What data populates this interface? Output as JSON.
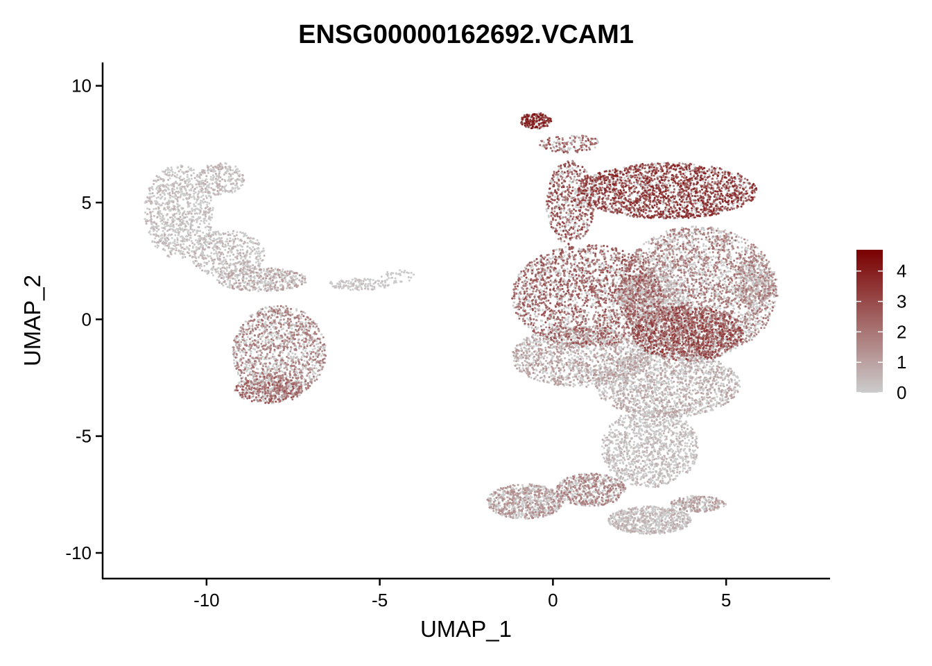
{
  "chart_data": {
    "type": "scatter",
    "title": "ENSG00000162692.VCAM1",
    "xlabel": "UMAP_1",
    "ylabel": "UMAP_2",
    "xlim": [
      -13,
      8
    ],
    "ylim": [
      -11.1,
      11
    ],
    "x_ticks": [
      -10,
      -5,
      0,
      5
    ],
    "y_ticks": [
      10,
      5,
      0,
      -5,
      -10
    ],
    "x_tick_labels": [
      "-10",
      "-5",
      "0",
      "5"
    ],
    "y_tick_labels": [
      "10",
      "5",
      "0",
      "-5",
      "-10"
    ],
    "grid": false,
    "legend": {
      "placement": "right",
      "type": "colorbar",
      "range": [
        0,
        4.7
      ],
      "ticks": [
        0,
        1,
        2,
        3,
        4
      ],
      "tick_labels": [
        "0",
        "1",
        "2",
        "3",
        "4"
      ],
      "color_low": "#cccccc",
      "color_high": "#7a0000"
    },
    "clusters": [
      {
        "name": "",
        "cx": -10.8,
        "cy": 4.6,
        "rx": 1.0,
        "ry": 2.0,
        "n": 900,
        "expr": 0.5
      },
      {
        "name": "",
        "cx": -9.4,
        "cy": 2.8,
        "rx": 1.1,
        "ry": 1.0,
        "n": 500,
        "expr": 0.6
      },
      {
        "name": "",
        "cx": -9.6,
        "cy": 6.0,
        "rx": 0.7,
        "ry": 0.7,
        "n": 250,
        "expr": 0.6
      },
      {
        "name": "",
        "cx": -8.4,
        "cy": 1.7,
        "rx": 1.3,
        "ry": 0.5,
        "n": 450,
        "expr": 1.0
      },
      {
        "name": "",
        "cx": -7.9,
        "cy": -1.4,
        "rx": 1.35,
        "ry": 2.0,
        "n": 1500,
        "expr": 1.7
      },
      {
        "name": "",
        "cx": -8.2,
        "cy": -3.0,
        "rx": 1.0,
        "ry": 0.6,
        "n": 400,
        "expr": 2.3
      },
      {
        "name": "",
        "cx": -5.6,
        "cy": 1.5,
        "rx": 0.9,
        "ry": 0.25,
        "n": 130,
        "expr": 0.4
      },
      {
        "name": "",
        "cx": -4.5,
        "cy": 1.85,
        "rx": 0.5,
        "ry": 0.3,
        "n": 40,
        "expr": 0.2
      },
      {
        "name": "",
        "cx": -0.5,
        "cy": 8.5,
        "rx": 0.45,
        "ry": 0.35,
        "n": 200,
        "expr": 3.5
      },
      {
        "name": "",
        "cx": 0.5,
        "cy": 7.5,
        "rx": 0.9,
        "ry": 0.4,
        "n": 150,
        "expr": 2.5
      },
      {
        "name": "",
        "cx": 0.5,
        "cy": 5.0,
        "rx": 0.7,
        "ry": 1.8,
        "n": 600,
        "expr": 2.7
      },
      {
        "name": "",
        "cx": 3.3,
        "cy": 5.5,
        "rx": 2.6,
        "ry": 1.2,
        "n": 2200,
        "expr": 3.1
      },
      {
        "name": "",
        "cx": 1.0,
        "cy": 1.0,
        "rx": 2.2,
        "ry": 2.2,
        "n": 2400,
        "expr": 2.4
      },
      {
        "name": "",
        "cx": 4.2,
        "cy": 1.2,
        "rx": 2.3,
        "ry": 2.8,
        "n": 3200,
        "expr": 1.8
      },
      {
        "name": "",
        "cx": 2.8,
        "cy": 1.0,
        "rx": 1.0,
        "ry": 1.0,
        "n": 500,
        "expr": 0.5
      },
      {
        "name": "",
        "cx": 3.9,
        "cy": -0.6,
        "rx": 1.6,
        "ry": 1.2,
        "n": 1400,
        "expr": 2.8
      },
      {
        "name": "",
        "cx": 0.8,
        "cy": -1.6,
        "rx": 2.0,
        "ry": 1.3,
        "n": 1400,
        "expr": 1.1
      },
      {
        "name": "",
        "cx": 3.3,
        "cy": -2.8,
        "rx": 2.1,
        "ry": 1.4,
        "n": 1600,
        "expr": 0.9
      },
      {
        "name": "",
        "cx": 2.8,
        "cy": -5.5,
        "rx": 1.4,
        "ry": 1.7,
        "n": 1200,
        "expr": 0.6
      },
      {
        "name": "",
        "cx": -0.8,
        "cy": -7.8,
        "rx": 1.1,
        "ry": 0.75,
        "n": 800,
        "expr": 1.3
      },
      {
        "name": "",
        "cx": 1.1,
        "cy": -7.3,
        "rx": 1.0,
        "ry": 0.7,
        "n": 600,
        "expr": 1.6
      },
      {
        "name": "",
        "cx": 2.8,
        "cy": -8.6,
        "rx": 1.2,
        "ry": 0.6,
        "n": 700,
        "expr": 0.7
      },
      {
        "name": "",
        "cx": 4.2,
        "cy": -7.9,
        "rx": 0.8,
        "ry": 0.35,
        "n": 260,
        "expr": 1.1
      },
      {
        "name": "",
        "cx": 5.8,
        "cy": 1.5,
        "rx": 0.6,
        "ry": 1.0,
        "n": 400,
        "expr": 1.0
      }
    ]
  }
}
